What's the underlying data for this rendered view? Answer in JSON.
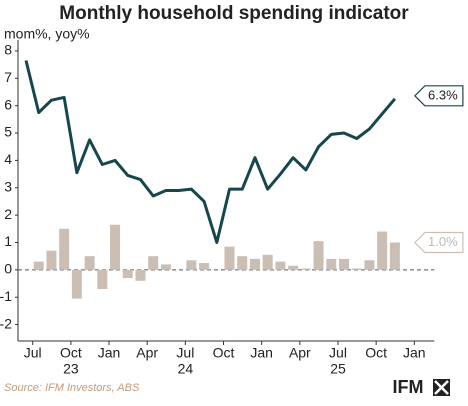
{
  "chart_data": {
    "type": "bar-line",
    "title": "Monthly household spending indicator",
    "subtitle": "mom%, yoy%",
    "source": "Source: IFM Investors, ABS",
    "logo": "IFM",
    "categories": [
      null,
      "Jul",
      null,
      null,
      "Oct",
      null,
      null,
      "Jan",
      null,
      null,
      "Apr",
      null,
      null,
      "Jul",
      null,
      null,
      "Oct",
      null,
      null,
      "Jan",
      null,
      null,
      "Apr",
      null,
      null,
      "Jul",
      null,
      null,
      "Oct",
      null,
      null,
      "Jan"
    ],
    "x_groups": [
      {
        "label": "23",
        "index": 4
      },
      {
        "label": "24",
        "index": 13
      },
      {
        "label": "25",
        "index": 25
      }
    ],
    "series": [
      {
        "kind": "bar",
        "color": "#cbbfb5",
        "end_label": "1.0%",
        "values": [
          null,
          0.3,
          0.7,
          1.5,
          -1.05,
          0.5,
          -0.7,
          1.65,
          -0.3,
          -0.4,
          0.5,
          0.2,
          0,
          0.35,
          0.25,
          0,
          0.85,
          0.5,
          0.4,
          0.55,
          0.3,
          0.15,
          0.05,
          1.05,
          0.4,
          0.4,
          0.05,
          0.35,
          1.4,
          1.0,
          null,
          null
        ]
      },
      {
        "kind": "line",
        "color": "#17464d",
        "end_label": "6.3%",
        "values": [
          7.65,
          5.75,
          6.2,
          6.3,
          3.55,
          4.75,
          3.85,
          4.0,
          3.45,
          3.3,
          2.7,
          2.9,
          2.9,
          2.95,
          2.5,
          1.0,
          2.95,
          2.95,
          4.1,
          2.95,
          3.5,
          4.1,
          3.65,
          4.5,
          4.95,
          5.0,
          4.8,
          5.15,
          5.7,
          6.25,
          null,
          null
        ]
      }
    ],
    "ylim": [
      -2.6,
      8.4
    ],
    "yticks": [
      -2,
      -1,
      0,
      1,
      2,
      3,
      4,
      5,
      6,
      7,
      8
    ],
    "zero_line": true
  }
}
